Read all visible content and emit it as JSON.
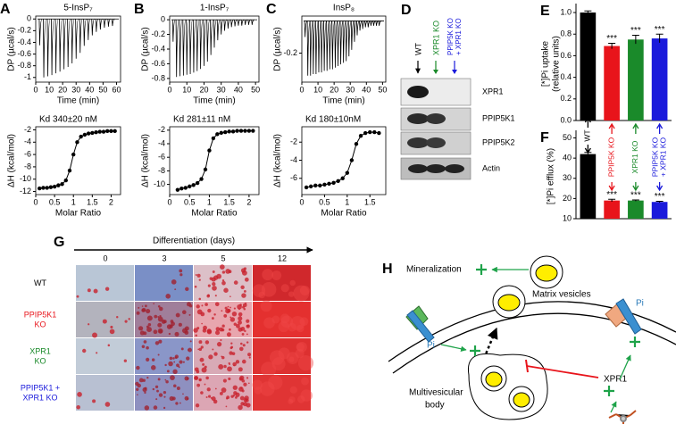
{
  "chart_data": [
    {
      "type": "spike",
      "panel": "A",
      "title": "5-InsP₇",
      "x_label": "Time (min)",
      "y_label": [
        "DP (µcal/s)"
      ],
      "x": [
        3,
        6,
        9,
        12,
        15,
        18,
        21,
        24,
        27,
        30,
        33,
        36,
        39,
        42,
        45,
        48,
        51,
        54,
        57
      ],
      "values": [
        -0.45,
        -1,
        -0.98,
        -0.96,
        -0.93,
        -0.9,
        -0.86,
        -0.82,
        -0.76,
        -0.68,
        -0.58,
        -0.46,
        -0.36,
        -0.28,
        -0.22,
        -0.18,
        -0.15,
        -0.13,
        -0.12
      ],
      "xlim": [
        0,
        63
      ],
      "xticks": [
        0,
        10,
        20,
        30,
        40,
        50,
        60
      ],
      "ylim": [
        -1.08,
        0.05
      ],
      "yticks": [
        0,
        -0.2,
        -0.4,
        -0.6,
        -0.8,
        -1
      ],
      "color": "#000000"
    },
    {
      "type": "line",
      "annotation": "Kd 340±20 nM",
      "x_label": "Molar Ratio",
      "y_label": [
        "ΔH (kcal/mol)"
      ],
      "x": [
        0.1,
        0.2,
        0.3,
        0.4,
        0.5,
        0.6,
        0.7,
        0.8,
        0.9,
        1,
        1.1,
        1.2,
        1.3,
        1.4,
        1.5,
        1.6,
        1.7,
        1.8,
        1.9,
        2,
        2.1
      ],
      "values": [
        -11.5,
        -11.4,
        -11.4,
        -11.3,
        -11.2,
        -11,
        -10.8,
        -10.2,
        -8.6,
        -6,
        -4,
        -3.1,
        -2.8,
        -2.6,
        -2.5,
        -2.4,
        -2.3,
        -2.3,
        -2.2,
        -2.2,
        -2.2
      ],
      "xlim": [
        0,
        2.25
      ],
      "xticks": [
        0,
        0.5,
        1,
        1.5,
        2
      ],
      "ylim": [
        -12.5,
        -1.5
      ],
      "yticks": [
        -2,
        -4,
        -6,
        -8,
        -10,
        -12
      ],
      "markers": true,
      "color": "#000000"
    },
    {
      "type": "spike",
      "panel": "B",
      "title": "1-InsP₇",
      "x_label": "Time (min)",
      "y_label": [
        "DP (µcal/s)"
      ],
      "x": [
        2,
        4,
        6,
        8,
        10,
        12,
        14,
        16,
        18,
        20,
        22,
        24,
        26,
        28,
        30,
        32,
        34,
        36,
        38,
        40,
        42,
        44,
        46,
        48
      ],
      "values": [
        -0.3,
        -0.78,
        -0.77,
        -0.76,
        -0.75,
        -0.74,
        -0.72,
        -0.7,
        -0.67,
        -0.63,
        -0.57,
        -0.48,
        -0.38,
        -0.28,
        -0.2,
        -0.15,
        -0.12,
        -0.1,
        -0.09,
        -0.08,
        -0.08,
        -0.07,
        -0.07,
        -0.07
      ],
      "xlim": [
        0,
        52
      ],
      "xticks": [
        0,
        10,
        20,
        30,
        40,
        50
      ],
      "ylim": [
        -0.85,
        0.05
      ],
      "yticks": [
        0,
        -0.2,
        -0.4,
        -0.6,
        -0.8
      ],
      "color": "#000000"
    },
    {
      "type": "line",
      "annotation": "Kd 281±11 nM",
      "x_label": "Molar Ratio",
      "y_label": [
        "ΔH (kcal/mol)"
      ],
      "x": [
        0.2,
        0.3,
        0.4,
        0.5,
        0.6,
        0.7,
        0.8,
        0.9,
        1,
        1.1,
        1.2,
        1.3,
        1.4,
        1.5,
        1.6,
        1.7,
        1.8,
        1.9,
        2,
        2.1
      ],
      "values": [
        -10.8,
        -10.6,
        -10.5,
        -10.3,
        -10.1,
        -9.8,
        -9.2,
        -7.8,
        -5,
        -3.2,
        -2.6,
        -2.4,
        -2.3,
        -2.2,
        -2.2,
        -2.1,
        -2.1,
        -2.1,
        -2.1,
        -2.1
      ],
      "xlim": [
        0,
        2.25
      ],
      "xticks": [
        0,
        0.5,
        1,
        1.5,
        2
      ],
      "ylim": [
        -11.5,
        -1.5
      ],
      "yticks": [
        -2,
        -4,
        -6,
        -8,
        -10
      ],
      "markers": true,
      "color": "#000000"
    },
    {
      "type": "spike",
      "panel": "C",
      "title": "InsP₈",
      "x_label": "Time (min)",
      "y_label": [
        "DP (µcal/s)"
      ],
      "x": [
        2,
        3.7,
        5.4,
        7.1,
        8.8,
        10.5,
        12.2,
        13.9,
        15.6,
        17.3,
        19,
        20.7,
        22.4,
        24.1,
        25.8,
        27.5,
        29.2,
        30.9,
        32.6,
        34.3,
        36,
        37.7,
        39.4,
        41.1,
        42.8,
        44.5,
        46.2,
        47.9
      ],
      "values": [
        -0.1,
        -0.34,
        -0.34,
        -0.33,
        -0.33,
        -0.32,
        -0.32,
        -0.31,
        -0.31,
        -0.3,
        -0.3,
        -0.29,
        -0.28,
        -0.27,
        -0.26,
        -0.25,
        -0.22,
        -0.18,
        -0.13,
        -0.09,
        -0.06,
        -0.05,
        -0.04,
        -0.04,
        -0.03,
        -0.03,
        -0.03,
        -0.03
      ],
      "xlim": [
        0,
        52
      ],
      "xticks": [
        0,
        10,
        20,
        30,
        40,
        50
      ],
      "ylim": [
        -0.38,
        0.03
      ],
      "yticks": [
        -0.2
      ],
      "color": "#000000"
    },
    {
      "type": "line",
      "annotation": "Kd 180±10nM",
      "x_label": "Molar Ratio",
      "y_label": [
        "ΔH (kcal/mol)"
      ],
      "x": [
        0.1,
        0.2,
        0.3,
        0.4,
        0.5,
        0.6,
        0.7,
        0.8,
        0.9,
        1,
        1.1,
        1.2,
        1.3,
        1.4,
        1.5,
        1.6,
        1.7
      ],
      "values": [
        -7,
        -6.9,
        -6.8,
        -6.8,
        -6.7,
        -6.6,
        -6.5,
        -6.3,
        -6,
        -5.4,
        -4,
        -2.2,
        -1.3,
        -1,
        -0.9,
        -0.9,
        -1
      ],
      "xlim": [
        0,
        1.85
      ],
      "xticks": [
        0,
        0.5,
        1,
        1.5
      ],
      "ylim": [
        -7.8,
        -0.3
      ],
      "yticks": [
        -2,
        -4,
        -6
      ],
      "markers": true,
      "color": "#000000"
    },
    {
      "type": "bar",
      "panel": "E",
      "y_label": [
        "[*]Pi uptake",
        "(relative units)"
      ],
      "categories": [
        null,
        null,
        null,
        null
      ],
      "values": [
        1,
        0.69,
        0.75,
        0.76
      ],
      "errors": [
        0.015,
        0.025,
        0.04,
        0.04
      ],
      "annotations": [
        null,
        "***",
        "***",
        "***"
      ],
      "colors": [
        "#000000",
        "#e8141b",
        "#1a8a2a",
        "#1a1adb"
      ],
      "ylim": [
        0,
        1.05
      ],
      "yticks": [
        {
          "value": 0,
          "label": "0.0"
        },
        0.2,
        0.4,
        0.6,
        0.8,
        {
          "value": 1,
          "label": "1.0"
        }
      ]
    },
    {
      "type": "bar",
      "panel": "F",
      "y_label": [
        "[*]Pi efflux (%)"
      ],
      "categories": [
        [
          "WT"
        ],
        [
          "PPIP5K KO"
        ],
        [
          "XPR1 KO"
        ],
        [
          "PPIP5K KO",
          "+ XPR1 KO"
        ]
      ],
      "values": [
        42,
        19,
        19,
        18.3
      ],
      "errors": [
        0.8,
        0.6,
        0.3,
        0.3
      ],
      "annotations": [
        null,
        "***",
        "***",
        "***"
      ],
      "colors": [
        "#000000",
        "#e8141b",
        "#1a8a2a",
        "#1a1adb"
      ],
      "ylim": [
        10,
        52
      ],
      "yticks": [
        10,
        20,
        30,
        40,
        50
      ]
    }
  ],
  "blot": {
    "panel": "D",
    "lanes": [
      [
        "WT"
      ],
      [
        "XPR1 KO"
      ],
      [
        "PPIP5K KO",
        "+ XPR1 KO"
      ]
    ],
    "rows": [
      "XPR1",
      "PPIP5K1",
      "PPIP5K2",
      "Actin"
    ]
  },
  "micrographs": {
    "panel": "G",
    "axis_title": "Differentiation (days)",
    "columns": [
      "0",
      "3",
      "5",
      "12"
    ],
    "rows": [
      [
        "WT"
      ],
      [
        "PPIP5K1",
        "KO"
      ],
      [
        "XPR1",
        "KO"
      ],
      [
        "PPIP5K1 +",
        "XPR1 KO"
      ]
    ]
  },
  "diagram": {
    "panel": "H",
    "mineralization": "Mineralization",
    "matrix_vesicles": "Matrix vesicles",
    "pi_left": "Pi",
    "pi_right": "Pi",
    "xpr1": "XPR1",
    "multivesicular_body": [
      "Multivesicular",
      "body"
    ]
  }
}
